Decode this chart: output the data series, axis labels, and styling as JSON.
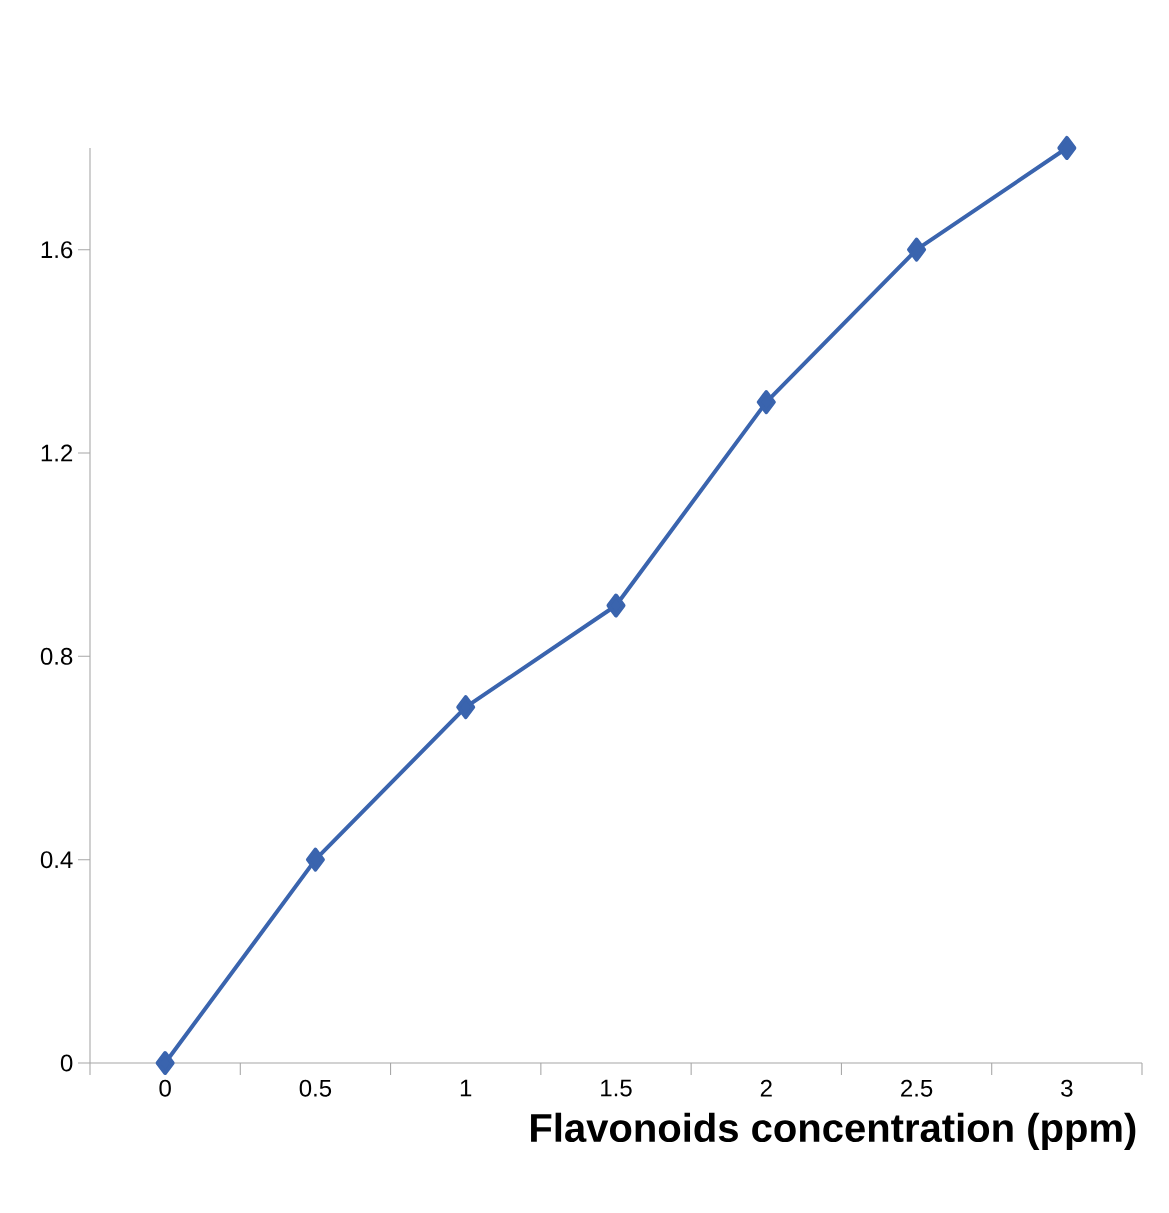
{
  "chart_data": {
    "type": "line",
    "xlabel": "Flavonoids concentration (ppm)",
    "categories": [
      "0",
      "0.5",
      "1",
      "1.5",
      "2",
      "2.5",
      "3"
    ],
    "series": [
      {
        "color": "#3a64ae",
        "values": [
          0,
          0.4,
          0.7,
          0.9,
          1.3,
          1.6,
          1.8
        ]
      }
    ],
    "ylim": [
      0,
      1.8
    ],
    "yticks": [
      0,
      0.4,
      0.8,
      1.2,
      1.6
    ],
    "grid": false,
    "marker": "diamond",
    "line_style": "solid"
  }
}
